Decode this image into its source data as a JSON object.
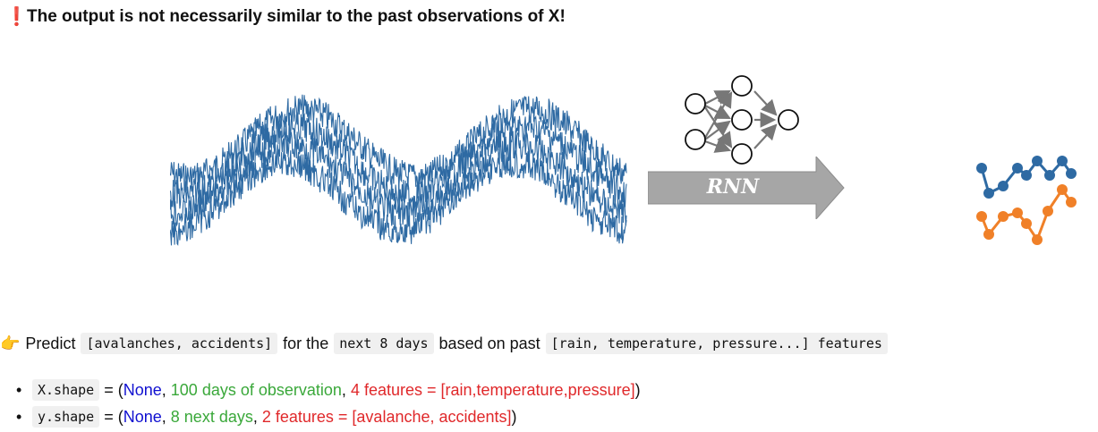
{
  "header": {
    "icon": "exclamation-icon",
    "warning": "The output is not necessarily similar to the past observations of X!"
  },
  "diagram": {
    "model_label": "RNN",
    "input_series_color": "#2e6aa3",
    "output_colors": {
      "series_1": "#2e6aa3",
      "series_2": "#f08028"
    }
  },
  "predict": {
    "icon": "pointing-hand-icon",
    "prefix": "Predict",
    "targets": "[avalanches, accidents]",
    "for_the": "for the",
    "horizon": "next 8 days",
    "based_on": "based on past",
    "features": "[rain, temperature, pressure...] features"
  },
  "shapes": [
    {
      "name": "X.shape",
      "equals": " = (",
      "batch": "None",
      "sep1": ", ",
      "steps": "100 days of observation",
      "sep2": ", ",
      "features": "4 features = [rain,temperature,pressure]",
      "close": ")"
    },
    {
      "name": "y.shape",
      "equals": " = (",
      "batch": "None",
      "sep1": ", ",
      "steps": "8 next days",
      "sep2": ", ",
      "features": "2 features = [avalanche, accidents]",
      "close": ")"
    }
  ]
}
